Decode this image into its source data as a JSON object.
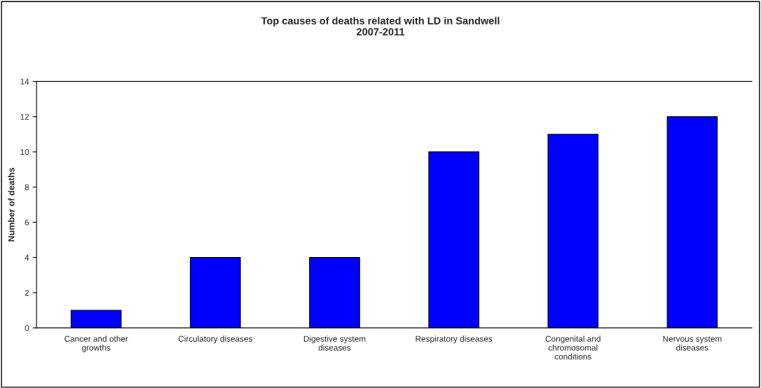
{
  "chart_data": {
    "type": "bar",
    "title": "Top causes of deaths related with LD in Sandwell\n2007-2011",
    "ylabel": "Number of deaths",
    "categories": [
      "Cancer and other\ngrowths",
      "Circulatory diseases",
      "Digestive system\ndiseases",
      "Respiratory diseases",
      "Congenital and\nchromosomal\nconditions",
      "Nervous system\ndiseases"
    ],
    "values": [
      1,
      4,
      4,
      10,
      11,
      12
    ],
    "color": "#0000ff",
    "ylim": [
      0,
      14
    ],
    "yticks": [
      0,
      2,
      4,
      6,
      8,
      10,
      12,
      14
    ],
    "grid": false,
    "legend": false
  }
}
